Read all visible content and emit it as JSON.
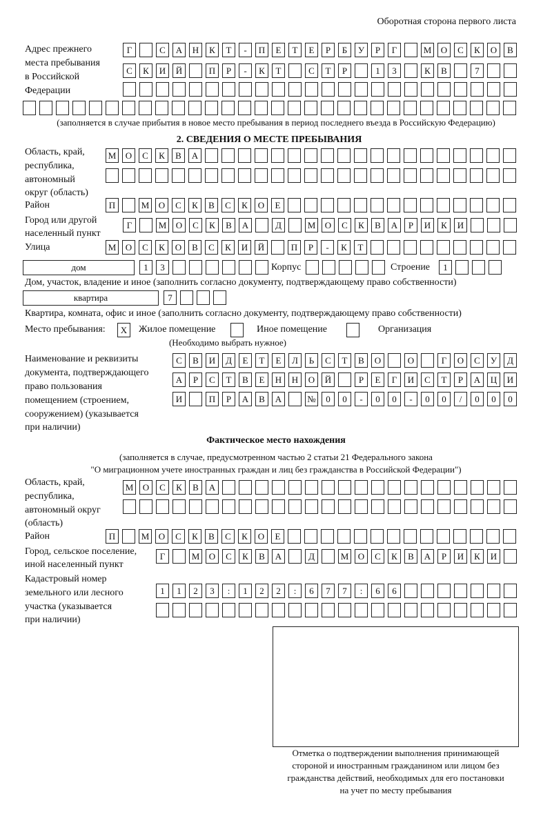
{
  "header": {
    "side_label": "Оборотная сторона первого листа"
  },
  "prev_address": {
    "label": [
      "Адрес прежнего",
      "места пребывания",
      "в Российской",
      "Федерации"
    ],
    "rows": [
      [
        "Г",
        " ",
        "С",
        "А",
        "Н",
        "К",
        "Т",
        "-",
        "П",
        "Е",
        "Т",
        "Е",
        "Р",
        "Б",
        "У",
        "Р",
        "Г",
        " ",
        "М",
        "О",
        "С",
        "К",
        "О",
        "В"
      ],
      [
        "С",
        "К",
        "И",
        "Й",
        " ",
        "П",
        "Р",
        "-",
        "К",
        "Т",
        " ",
        "С",
        "Т",
        "Р",
        " ",
        "1",
        "3",
        " ",
        "К",
        "В",
        " ",
        "7",
        " ",
        " "
      ],
      [],
      []
    ],
    "note": "(заполняется в случае прибытия в новое место пребывания в период последнего въезда в Российскую Федерацию)"
  },
  "section2": {
    "title": "2. СВЕДЕНИЯ О МЕСТЕ ПРЕБЫВАНИЯ",
    "region_label": [
      "Область, край,",
      "республика,",
      "автономный",
      "округ (область)"
    ],
    "region_rows": [
      [
        "М",
        "О",
        "С",
        "К",
        "В",
        "А"
      ],
      []
    ],
    "district_label": "Район",
    "district": [
      "П",
      " ",
      "М",
      "О",
      "С",
      "К",
      "В",
      "С",
      "К",
      "О",
      "Е"
    ],
    "city_label": [
      "Город или другой",
      "населенный пункт"
    ],
    "city": [
      "Г",
      " ",
      "М",
      "О",
      "С",
      "К",
      "В",
      "А",
      " ",
      "Д",
      " ",
      "М",
      "О",
      "С",
      "К",
      "В",
      "А",
      "Р",
      "И",
      "К",
      "И"
    ],
    "street_label": "Улица",
    "street": [
      "М",
      "О",
      "С",
      "К",
      "О",
      "В",
      "С",
      "К",
      "И",
      "Й",
      " ",
      "П",
      "Р",
      "-",
      "К",
      "Т"
    ],
    "house_type": "дом",
    "house": [
      "1",
      "3"
    ],
    "korpus_label": "Корпус",
    "korpus": [],
    "building_label": "Строение",
    "building": [
      "1"
    ],
    "house_note": "Дом, участок, владение и иное (заполнить согласно документу, подтверждающему право собственности)",
    "apt_type": "квартира",
    "apt": [
      "7"
    ],
    "apt_note": "Квартира, комната, офис и иное (заполнить согласно документу, подтверждающему право собственности)",
    "stay_label": "Место пребывания:",
    "stay_options": [
      {
        "label": "Жилое помещение",
        "checked": true,
        "mark": "X"
      },
      {
        "label": "Иное помещение",
        "checked": false,
        "mark": ""
      },
      {
        "label": "Организация",
        "checked": false,
        "mark": ""
      }
    ],
    "stay_hint": "(Необходимо выбрать нужное)",
    "doc_label": [
      "Наименование и реквизиты",
      "документа, подтверждающего",
      "право пользования",
      "помещением (строением,",
      "сооружением) (указывается",
      "при наличии)"
    ],
    "doc_rows": [
      [
        "С",
        "В",
        "И",
        "Д",
        "Е",
        "Т",
        "Е",
        "Л",
        "Ь",
        "С",
        "Т",
        "В",
        "О",
        " ",
        "О",
        " ",
        "Г",
        "О",
        "С",
        "У",
        "Д"
      ],
      [
        "А",
        "Р",
        "С",
        "Т",
        "В",
        "Е",
        "Н",
        "Н",
        "О",
        "Й",
        " ",
        "Р",
        "Е",
        "Г",
        "И",
        "С",
        "Т",
        "Р",
        "А",
        "Ц",
        "И"
      ],
      [
        "И",
        " ",
        "П",
        "Р",
        "А",
        "В",
        "А",
        " ",
        "№",
        "0",
        "0",
        "-",
        "0",
        "0",
        "-",
        "0",
        "0",
        "/",
        "0",
        "0",
        "0"
      ]
    ]
  },
  "actual": {
    "title": "Фактическое место нахождения",
    "note": [
      "(заполняется в случае, предусмотренном частью 2 статьи 21 Федерального закона",
      "\"О миграционном учете иностранных граждан и лиц без гражданства в Российской Федерации\")"
    ],
    "region_label": [
      "Область, край,",
      "республика,",
      "автономный округ",
      "(область)"
    ],
    "region_rows": [
      [
        "М",
        "О",
        "С",
        "К",
        "В",
        "А"
      ],
      []
    ],
    "district_label": "Район",
    "district": [
      "П",
      " ",
      "М",
      "О",
      "С",
      "К",
      "В",
      "С",
      "К",
      "О",
      "Е"
    ],
    "city_label": [
      "Город, сельское поселение,",
      "иной населенный пункт"
    ],
    "city": [
      "Г",
      " ",
      "М",
      "О",
      "С",
      "К",
      "В",
      "А",
      " ",
      "Д",
      " ",
      "М",
      "О",
      "С",
      "К",
      "В",
      "А",
      "Р",
      "И",
      "К",
      "И"
    ],
    "cadastre_label": [
      "Кадастровый номер",
      "земельного или лесного",
      "участка (указывается",
      "при наличии)"
    ],
    "cadastre_rows": [
      [
        "1",
        "1",
        "2",
        "3",
        ":",
        "1",
        "2",
        "2",
        ":",
        "6",
        "7",
        "7",
        ":",
        "6",
        "6"
      ],
      []
    ]
  },
  "stamp": {
    "caption": [
      "Отметка о подтверждении выполнения принимающей",
      "стороной и иностранным гражданином или лицом без",
      "гражданства действий, необходимых для его постановки",
      "на учет по месту пребывания"
    ]
  }
}
